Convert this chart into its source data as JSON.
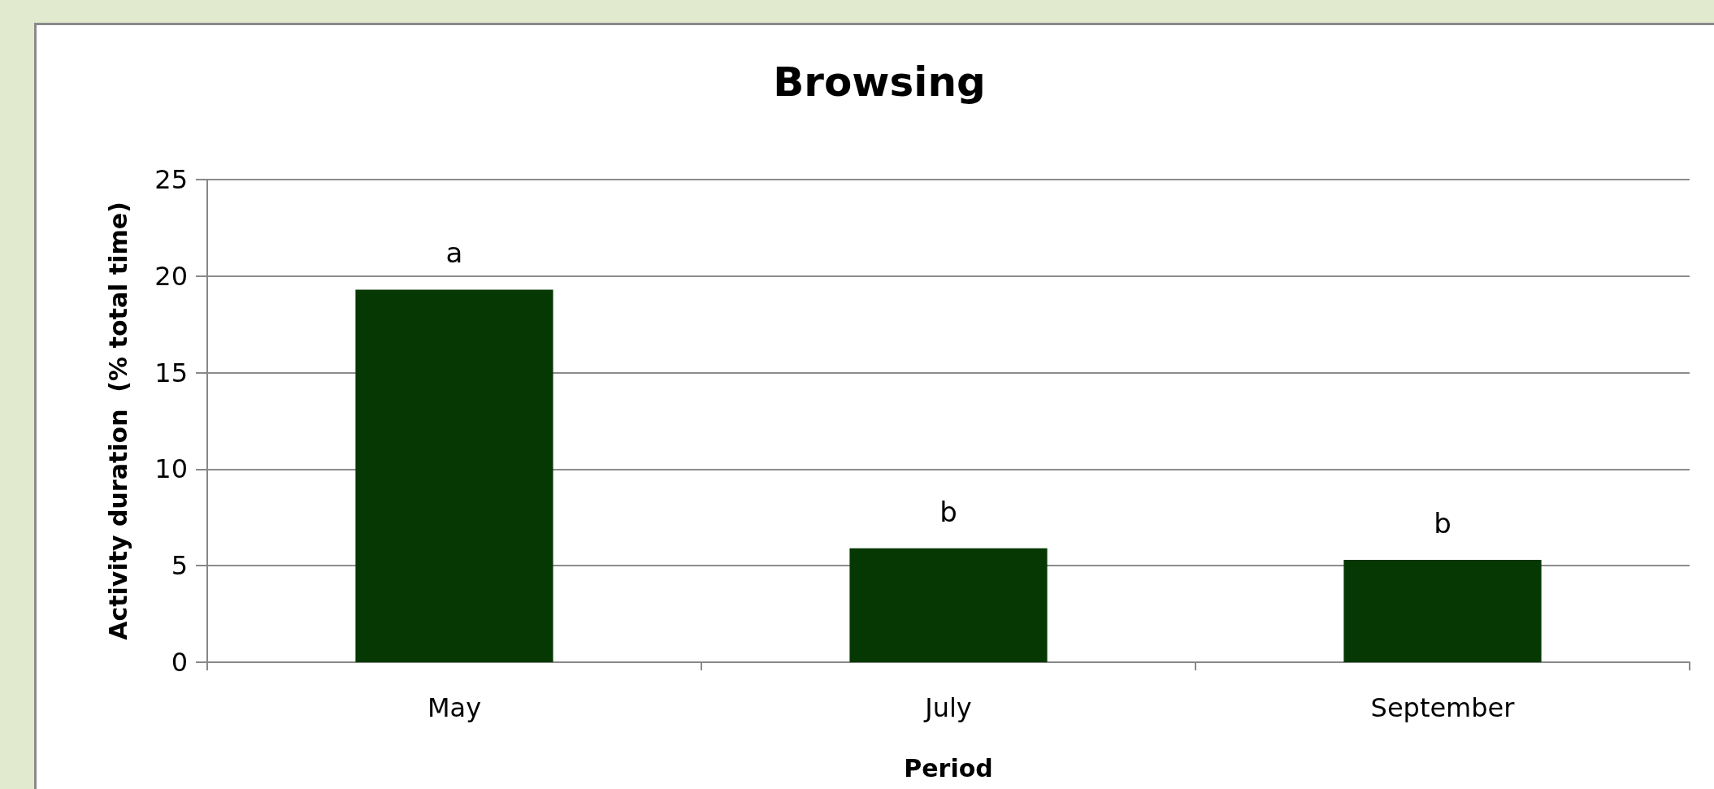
{
  "chart_data": {
    "type": "bar",
    "title": "Browsing",
    "xlabel": "Period",
    "ylabel": "Activity duration  (% total time)",
    "categories": [
      "May",
      "July",
      "September"
    ],
    "values": [
      19.3,
      5.9,
      5.3
    ],
    "value_labels": [
      "a",
      "b",
      "b"
    ],
    "color": "#063804",
    "ylim": [
      0,
      25
    ],
    "yticks": [
      0,
      5,
      10,
      15,
      20,
      25
    ],
    "grid": "y"
  }
}
